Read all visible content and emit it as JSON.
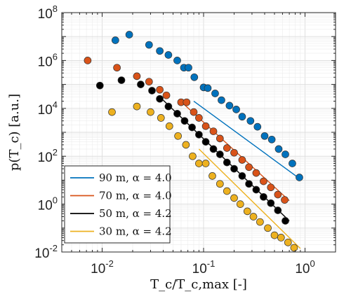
{
  "chart_data": {
    "type": "scatter",
    "xscale": "log",
    "yscale": "log",
    "xlim": [
      0.004,
      2
    ],
    "ylim": [
      0.01,
      100000000
    ],
    "xlabel": "T_c/T_c,max [-]",
    "ylabel": "p(T_c) [a.u.]",
    "grid": true,
    "legend_position": "bottom-left",
    "x_ticks": [
      {
        "mantissa": "10",
        "exp": "-2",
        "value": 0.01
      },
      {
        "mantissa": "10",
        "exp": "-1",
        "value": 0.1
      },
      {
        "mantissa": "10",
        "exp": "0",
        "value": 1
      }
    ],
    "y_ticks": [
      {
        "mantissa": "10",
        "exp": "-2",
        "value": 0.01
      },
      {
        "mantissa": "10",
        "exp": "0",
        "value": 1
      },
      {
        "mantissa": "10",
        "exp": "2",
        "value": 100
      },
      {
        "mantissa": "10",
        "exp": "4",
        "value": 10000
      },
      {
        "mantissa": "10",
        "exp": "6",
        "value": 1000000
      },
      {
        "mantissa": "10",
        "exp": "8",
        "value": 100000000
      }
    ],
    "series": [
      {
        "name": "90 m, α = 4.0",
        "color": "#0072BD",
        "fit": {
          "x": [
            0.08,
            0.9
          ],
          "y": [
            20000,
            11
          ]
        },
        "points": [
          [
            0.0135,
            7000000
          ],
          [
            0.0185,
            12000000
          ],
          [
            0.029,
            4500000
          ],
          [
            0.037,
            2500000
          ],
          [
            0.045,
            1700000
          ],
          [
            0.055,
            1000000
          ],
          [
            0.064,
            500000
          ],
          [
            0.071,
            500000
          ],
          [
            0.081,
            200000
          ],
          [
            0.1,
            75000
          ],
          [
            0.11,
            70000
          ],
          [
            0.13,
            42000
          ],
          [
            0.15,
            22000
          ],
          [
            0.18,
            13000
          ],
          [
            0.21,
            9000
          ],
          [
            0.24,
            4500
          ],
          [
            0.29,
            3000
          ],
          [
            0.34,
            1700
          ],
          [
            0.4,
            700
          ],
          [
            0.47,
            500
          ],
          [
            0.55,
            200
          ],
          [
            0.64,
            120
          ],
          [
            0.75,
            50
          ],
          [
            0.88,
            13
          ]
        ]
      },
      {
        "name": "70 m, α = 4.0",
        "color": "#D95319",
        "fit": {
          "x": [
            0.06,
            0.7
          ],
          "y": [
            19000,
            1.4
          ]
        },
        "points": [
          [
            0.0072,
            1000000
          ],
          [
            0.014,
            500000
          ],
          [
            0.022,
            220000
          ],
          [
            0.029,
            130000
          ],
          [
            0.037,
            60000
          ],
          [
            0.043,
            35000
          ],
          [
            0.06,
            18000
          ],
          [
            0.068,
            18000
          ],
          [
            0.08,
            7000
          ],
          [
            0.09,
            4000
          ],
          [
            0.105,
            1800
          ],
          [
            0.125,
            1100
          ],
          [
            0.145,
            550
          ],
          [
            0.17,
            220
          ],
          [
            0.2,
            140
          ],
          [
            0.24,
            70
          ],
          [
            0.28,
            35
          ],
          [
            0.33,
            20
          ],
          [
            0.39,
            9
          ],
          [
            0.46,
            5
          ],
          [
            0.54,
            2.5
          ],
          [
            0.63,
            1.5
          ]
        ]
      },
      {
        "name": "50 m, α = 4.2",
        "color": "#000000",
        "fit": {
          "x": [
            0.04,
            0.7
          ],
          "y": [
            22000,
            0.2
          ]
        },
        "points": [
          [
            0.0095,
            90000
          ],
          [
            0.0155,
            150000
          ],
          [
            0.024,
            100000
          ],
          [
            0.031,
            55000
          ],
          [
            0.037,
            25000
          ],
          [
            0.045,
            12000
          ],
          [
            0.055,
            6000
          ],
          [
            0.065,
            3000
          ],
          [
            0.077,
            1600
          ],
          [
            0.09,
            800
          ],
          [
            0.105,
            400
          ],
          [
            0.125,
            200
          ],
          [
            0.145,
            120
          ],
          [
            0.17,
            55
          ],
          [
            0.2,
            30
          ],
          [
            0.24,
            15
          ],
          [
            0.28,
            7
          ],
          [
            0.33,
            4
          ],
          [
            0.39,
            2
          ],
          [
            0.46,
            1.1
          ],
          [
            0.54,
            0.55
          ],
          [
            0.64,
            0.2
          ]
        ]
      },
      {
        "name": "30 m, α = 4.2",
        "color": "#EDB120",
        "fit": {
          "x": [
            0.09,
            0.9
          ],
          "y": [
            200,
            0.014
          ]
        },
        "points": [
          [
            0.0125,
            7000
          ],
          [
            0.022,
            12000
          ],
          [
            0.03,
            7000
          ],
          [
            0.038,
            4000
          ],
          [
            0.046,
            1800
          ],
          [
            0.056,
            700
          ],
          [
            0.067,
            300
          ],
          [
            0.078,
            100
          ],
          [
            0.09,
            50
          ],
          [
            0.105,
            50
          ],
          [
            0.122,
            15
          ],
          [
            0.145,
            7
          ],
          [
            0.17,
            3.5
          ],
          [
            0.2,
            1.8
          ],
          [
            0.23,
            1
          ],
          [
            0.27,
            0.5
          ],
          [
            0.31,
            0.3
          ],
          [
            0.36,
            0.18
          ],
          [
            0.43,
            0.1
          ],
          [
            0.5,
            0.05
          ],
          [
            0.58,
            0.04
          ],
          [
            0.68,
            0.025
          ],
          [
            0.78,
            0.015
          ]
        ]
      }
    ]
  }
}
